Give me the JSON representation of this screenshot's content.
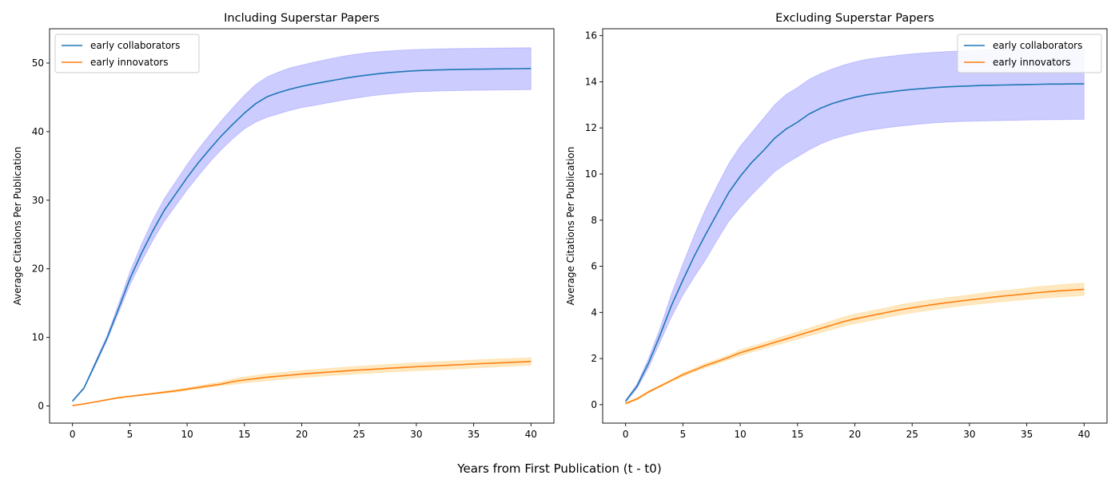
{
  "figure": {
    "xlabel": "Years from First Publication (t - t0)"
  },
  "colors": {
    "collaborators": "#1f77b4",
    "innovators": "#ff7f0e",
    "collaborators_band": "#0000ff",
    "innovators_band": "#ffa500"
  },
  "chart_data": [
    {
      "type": "line",
      "title": "Including Superstar Papers",
      "xlabel": "",
      "ylabel": "Average Citations Per Publication",
      "xlim": [
        -2,
        42
      ],
      "ylim": [
        -2.5,
        55
      ],
      "xticks": [
        0,
        5,
        10,
        15,
        20,
        25,
        30,
        35,
        40
      ],
      "xtick_labels": [
        "0",
        "5",
        "10",
        "15",
        "20",
        "25",
        "30",
        "35",
        "40"
      ],
      "yticks": [
        0,
        10,
        20,
        30,
        40,
        50
      ],
      "ytick_labels": [
        "0",
        "10",
        "20",
        "30",
        "40",
        "50"
      ],
      "legend": {
        "position": "top-left",
        "entries": [
          "early collaborators",
          "early innovators"
        ]
      },
      "x": [
        0,
        1,
        2,
        3,
        4,
        5,
        6,
        7,
        8,
        9,
        10,
        11,
        12,
        13,
        14,
        15,
        16,
        17,
        18,
        19,
        20,
        21,
        22,
        23,
        24,
        25,
        26,
        27,
        28,
        29,
        30,
        31,
        32,
        33,
        34,
        35,
        36,
        37,
        38,
        39,
        40
      ],
      "series": [
        {
          "name": "early collaborators",
          "values": [
            0.7,
            2.6,
            6.2,
            9.8,
            14.1,
            18.5,
            22.2,
            25.5,
            28.5,
            30.9,
            33.3,
            35.5,
            37.5,
            39.4,
            41.1,
            42.7,
            44.1,
            45.1,
            45.7,
            46.2,
            46.6,
            46.95,
            47.25,
            47.55,
            47.85,
            48.1,
            48.3,
            48.5,
            48.65,
            48.78,
            48.88,
            48.95,
            49.0,
            49.04,
            49.07,
            49.1,
            49.12,
            49.14,
            49.16,
            49.18,
            49.2
          ],
          "lower": [
            0.6,
            2.5,
            5.9,
            9.5,
            13.5,
            17.6,
            21.0,
            24.1,
            26.9,
            29.2,
            31.5,
            33.6,
            35.6,
            37.4,
            39.0,
            40.4,
            41.4,
            42.1,
            42.6,
            43.1,
            43.5,
            43.8,
            44.1,
            44.4,
            44.7,
            44.95,
            45.2,
            45.4,
            45.55,
            45.7,
            45.8,
            45.87,
            45.92,
            45.96,
            46.0,
            46.02,
            46.04,
            46.06,
            46.08,
            46.1,
            46.12
          ],
          "upper": [
            0.8,
            2.7,
            6.5,
            10.2,
            14.8,
            19.5,
            23.5,
            27.1,
            30.2,
            32.7,
            35.2,
            37.5,
            39.6,
            41.6,
            43.5,
            45.3,
            46.9,
            48.0,
            48.7,
            49.3,
            49.7,
            50.1,
            50.45,
            50.8,
            51.1,
            51.35,
            51.55,
            51.7,
            51.8,
            51.9,
            51.97,
            52.02,
            52.06,
            52.1,
            52.12,
            52.14,
            52.16,
            52.18,
            52.2,
            52.22,
            52.24
          ]
        },
        {
          "name": "early innovators",
          "values": [
            0.05,
            0.3,
            0.6,
            0.9,
            1.2,
            1.4,
            1.6,
            1.8,
            2.0,
            2.2,
            2.45,
            2.7,
            2.95,
            3.2,
            3.55,
            3.8,
            4.0,
            4.2,
            4.35,
            4.5,
            4.65,
            4.78,
            4.9,
            5.02,
            5.13,
            5.24,
            5.34,
            5.44,
            5.54,
            5.63,
            5.72,
            5.8,
            5.88,
            5.96,
            6.04,
            6.12,
            6.2,
            6.27,
            6.34,
            6.41,
            6.48
          ],
          "lower": [
            0.0,
            0.25,
            0.55,
            0.85,
            1.1,
            1.3,
            1.5,
            1.7,
            1.85,
            2.0,
            2.25,
            2.5,
            2.75,
            2.95,
            3.15,
            3.35,
            3.55,
            3.7,
            3.85,
            4.0,
            4.13,
            4.25,
            4.37,
            4.48,
            4.58,
            4.68,
            4.78,
            4.87,
            4.96,
            5.05,
            5.13,
            5.21,
            5.29,
            5.37,
            5.45,
            5.53,
            5.61,
            5.69,
            5.77,
            5.85,
            5.92
          ],
          "upper": [
            0.1,
            0.35,
            0.65,
            0.95,
            1.3,
            1.5,
            1.7,
            1.9,
            2.15,
            2.4,
            2.65,
            2.95,
            3.25,
            3.5,
            3.95,
            4.25,
            4.45,
            4.7,
            4.85,
            5.0,
            5.17,
            5.31,
            5.43,
            5.56,
            5.68,
            5.8,
            5.9,
            6.01,
            6.12,
            6.21,
            6.31,
            6.39,
            6.47,
            6.55,
            6.63,
            6.71,
            6.79,
            6.85,
            6.91,
            6.97,
            7.04
          ]
        }
      ]
    },
    {
      "type": "line",
      "title": "Excluding Superstar Papers",
      "xlabel": "",
      "ylabel": "Average Citations Per Publication",
      "xlim": [
        -2,
        42
      ],
      "ylim": [
        -0.8,
        16.3
      ],
      "xticks": [
        0,
        5,
        10,
        15,
        20,
        25,
        30,
        35,
        40
      ],
      "xtick_labels": [
        "0",
        "5",
        "10",
        "15",
        "20",
        "25",
        "30",
        "35",
        "40"
      ],
      "yticks": [
        0,
        2,
        4,
        6,
        8,
        10,
        12,
        14,
        16
      ],
      "ytick_labels": [
        "0",
        "2",
        "4",
        "6",
        "8",
        "10",
        "12",
        "14",
        "16"
      ],
      "legend": {
        "position": "top-right",
        "entries": [
          "early collaborators",
          "early innovators"
        ]
      },
      "x": [
        0,
        1,
        2,
        3,
        4,
        5,
        6,
        7,
        8,
        9,
        10,
        11,
        12,
        13,
        14,
        15,
        16,
        17,
        18,
        19,
        20,
        21,
        22,
        23,
        24,
        25,
        26,
        27,
        28,
        29,
        30,
        31,
        32,
        33,
        34,
        35,
        36,
        37,
        38,
        39,
        40
      ],
      "series": [
        {
          "name": "early collaborators",
          "values": [
            0.15,
            0.8,
            1.8,
            3.0,
            4.3,
            5.4,
            6.45,
            7.4,
            8.3,
            9.2,
            9.9,
            10.5,
            11.0,
            11.55,
            11.95,
            12.25,
            12.6,
            12.85,
            13.05,
            13.2,
            13.33,
            13.43,
            13.5,
            13.56,
            13.62,
            13.67,
            13.71,
            13.75,
            13.78,
            13.8,
            13.82,
            13.84,
            13.85,
            13.86,
            13.87,
            13.88,
            13.89,
            13.9,
            13.9,
            13.91,
            13.91
          ],
          "lower": [
            0.1,
            0.7,
            1.6,
            2.7,
            3.8,
            4.75,
            5.55,
            6.3,
            7.15,
            7.95,
            8.55,
            9.1,
            9.6,
            10.1,
            10.45,
            10.75,
            11.05,
            11.3,
            11.5,
            11.65,
            11.78,
            11.88,
            11.95,
            12.02,
            12.08,
            12.13,
            12.18,
            12.22,
            12.25,
            12.27,
            12.29,
            12.3,
            12.31,
            12.32,
            12.33,
            12.34,
            12.35,
            12.36,
            12.36,
            12.37,
            12.37
          ],
          "upper": [
            0.2,
            0.9,
            2.0,
            3.3,
            4.8,
            6.1,
            7.35,
            8.5,
            9.5,
            10.45,
            11.2,
            11.8,
            12.4,
            13.0,
            13.45,
            13.75,
            14.1,
            14.35,
            14.55,
            14.72,
            14.86,
            14.97,
            15.04,
            15.1,
            15.16,
            15.21,
            15.25,
            15.28,
            15.31,
            15.33,
            15.35,
            15.37,
            15.39,
            15.4,
            15.41,
            15.42,
            15.43,
            15.44,
            15.44,
            15.45,
            15.45
          ]
        },
        {
          "name": "early innovators",
          "values": [
            0.05,
            0.25,
            0.55,
            0.8,
            1.05,
            1.3,
            1.5,
            1.7,
            1.87,
            2.05,
            2.25,
            2.4,
            2.55,
            2.7,
            2.85,
            3.0,
            3.15,
            3.3,
            3.45,
            3.6,
            3.72,
            3.82,
            3.92,
            4.02,
            4.12,
            4.2,
            4.28,
            4.35,
            4.42,
            4.48,
            4.54,
            4.6,
            4.66,
            4.71,
            4.76,
            4.81,
            4.86,
            4.9,
            4.94,
            4.97,
            5.0
          ],
          "lower": [
            0.0,
            0.2,
            0.5,
            0.75,
            1.0,
            1.22,
            1.42,
            1.6,
            1.77,
            1.95,
            2.12,
            2.27,
            2.42,
            2.56,
            2.7,
            2.84,
            2.98,
            3.12,
            3.26,
            3.4,
            3.51,
            3.61,
            3.71,
            3.81,
            3.9,
            3.98,
            4.06,
            4.13,
            4.2,
            4.26,
            4.32,
            4.37,
            4.42,
            4.47,
            4.52,
            4.56,
            4.6,
            4.64,
            4.67,
            4.7,
            4.73
          ],
          "upper": [
            0.1,
            0.3,
            0.6,
            0.85,
            1.1,
            1.38,
            1.58,
            1.8,
            1.97,
            2.15,
            2.38,
            2.53,
            2.68,
            2.84,
            3.0,
            3.16,
            3.32,
            3.48,
            3.64,
            3.8,
            3.93,
            4.03,
            4.13,
            4.23,
            4.34,
            4.42,
            4.5,
            4.57,
            4.64,
            4.7,
            4.76,
            4.83,
            4.9,
            4.95,
            5.0,
            5.06,
            5.12,
            5.16,
            5.21,
            5.24,
            5.27
          ]
        }
      ]
    }
  ]
}
